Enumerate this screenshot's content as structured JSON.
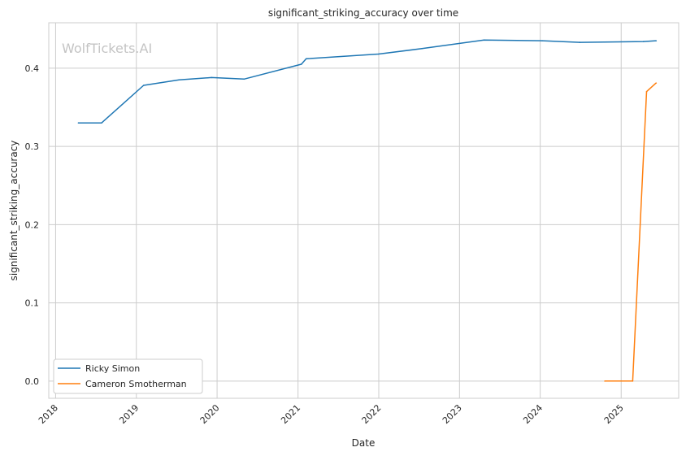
{
  "chart_data": {
    "type": "line",
    "title": "significant_striking_accuracy over time",
    "xlabel": "Date",
    "ylabel": "significant_striking_accuracy",
    "watermark": "WolfTickets.AI",
    "grid": true,
    "legend_position": "lower-left",
    "x_ticks": [
      "2018",
      "2019",
      "2020",
      "2021",
      "2022",
      "2023",
      "2024",
      "2025"
    ],
    "y_ticks": [
      "0.0",
      "0.1",
      "0.2",
      "0.3",
      "0.4"
    ],
    "xlim": [
      "2017-12-01",
      "2025-09-18"
    ],
    "ylim": [
      -0.022,
      0.458
    ],
    "series": [
      {
        "name": "Ricky Simon",
        "color": "#1f77b4",
        "points": [
          [
            "2018-04-14",
            0.33
          ],
          [
            "2018-07-28",
            0.33
          ],
          [
            "2019-02-03",
            0.378
          ],
          [
            "2019-07-13",
            0.385
          ],
          [
            "2019-12-07",
            0.388
          ],
          [
            "2020-05-02",
            0.386
          ],
          [
            "2021-01-16",
            0.405
          ],
          [
            "2021-02-07",
            0.412
          ],
          [
            "2021-12-31",
            0.418
          ],
          [
            "2022-07-15",
            0.425
          ],
          [
            "2023-04-22",
            0.436
          ],
          [
            "2024-01-10",
            0.435
          ],
          [
            "2024-06-28",
            0.433
          ],
          [
            "2025-04-12",
            0.434
          ],
          [
            "2025-06-08",
            0.435
          ]
        ]
      },
      {
        "name": "Cameron Smotherman",
        "color": "#ff7f0e",
        "points": [
          [
            "2024-10-19",
            0.0
          ],
          [
            "2025-02-22",
            0.0
          ],
          [
            "2025-04-26",
            0.37
          ],
          [
            "2025-06-08",
            0.381
          ]
        ]
      }
    ]
  }
}
